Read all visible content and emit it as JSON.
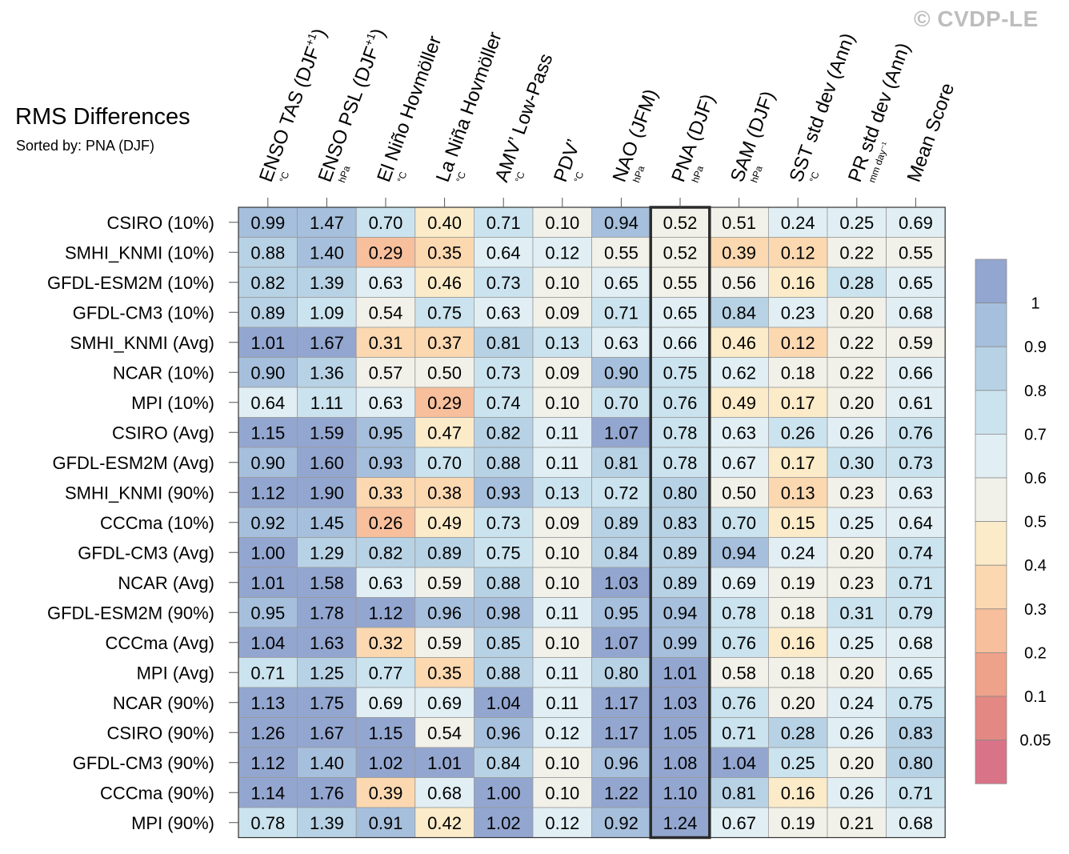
{
  "watermark": "© CVDP-LE",
  "chart_data": {
    "type": "heatmap",
    "title": "RMS Differences",
    "subtitle": "Sorted by: PNA (DJF)",
    "highlighted_column": "PNA (DJF)",
    "columns": [
      {
        "name": "ENSO TAS (DJF",
        "sup": "+1",
        "suffix": ")",
        "unit": "°C"
      },
      {
        "name": "ENSO PSL (DJF",
        "sup": "+1",
        "suffix": ")",
        "unit": "hPa"
      },
      {
        "name": "El Niño Hovmöller",
        "sup": "",
        "suffix": "",
        "unit": "°C"
      },
      {
        "name": "La Niña Hovmöller",
        "sup": "",
        "suffix": "",
        "unit": "°C"
      },
      {
        "name": "AMV’ Low-Pass",
        "sup": "",
        "suffix": "",
        "unit": "°C"
      },
      {
        "name": "PDV’",
        "sup": "",
        "suffix": "",
        "unit": "°C"
      },
      {
        "name": "NAO (JFM)",
        "sup": "",
        "suffix": "",
        "unit": "hPa"
      },
      {
        "name": "PNA (DJF)",
        "sup": "",
        "suffix": "",
        "unit": "hPa"
      },
      {
        "name": "SAM (DJF)",
        "sup": "",
        "suffix": "",
        "unit": "hPa"
      },
      {
        "name": "SST std dev (Ann)",
        "sup": "",
        "suffix": "",
        "unit": "°C"
      },
      {
        "name": "PR std dev (Ann)",
        "sup": "",
        "suffix": "",
        "unit": "mm day⁻¹"
      },
      {
        "name": "Mean Score",
        "sup": "",
        "suffix": "",
        "unit": ""
      }
    ],
    "rows": [
      {
        "label": "CSIRO (10%)",
        "values": [
          "0.99",
          "1.47",
          "0.70",
          "0.40",
          "0.71",
          "0.10",
          "0.94",
          "0.52",
          "0.51",
          "0.24",
          "0.25",
          "0.69"
        ]
      },
      {
        "label": "SMHI_KNMI (10%)",
        "values": [
          "0.88",
          "1.40",
          "0.29",
          "0.35",
          "0.64",
          "0.12",
          "0.55",
          "0.52",
          "0.39",
          "0.12",
          "0.22",
          "0.55"
        ]
      },
      {
        "label": "GFDL-ESM2M (10%)",
        "values": [
          "0.82",
          "1.39",
          "0.63",
          "0.46",
          "0.73",
          "0.10",
          "0.65",
          "0.55",
          "0.56",
          "0.16",
          "0.28",
          "0.65"
        ]
      },
      {
        "label": "GFDL-CM3 (10%)",
        "values": [
          "0.89",
          "1.09",
          "0.54",
          "0.75",
          "0.63",
          "0.09",
          "0.71",
          "0.65",
          "0.84",
          "0.23",
          "0.20",
          "0.68"
        ]
      },
      {
        "label": "SMHI_KNMI (Avg)",
        "values": [
          "1.01",
          "1.67",
          "0.31",
          "0.37",
          "0.81",
          "0.13",
          "0.63",
          "0.66",
          "0.46",
          "0.12",
          "0.22",
          "0.59"
        ]
      },
      {
        "label": "NCAR (10%)",
        "values": [
          "0.90",
          "1.36",
          "0.57",
          "0.50",
          "0.73",
          "0.09",
          "0.90",
          "0.75",
          "0.62",
          "0.18",
          "0.22",
          "0.66"
        ]
      },
      {
        "label": "MPI (10%)",
        "values": [
          "0.64",
          "1.11",
          "0.63",
          "0.29",
          "0.74",
          "0.10",
          "0.70",
          "0.76",
          "0.49",
          "0.17",
          "0.20",
          "0.61"
        ]
      },
      {
        "label": "CSIRO (Avg)",
        "values": [
          "1.15",
          "1.59",
          "0.95",
          "0.47",
          "0.82",
          "0.11",
          "1.07",
          "0.78",
          "0.63",
          "0.26",
          "0.26",
          "0.76"
        ]
      },
      {
        "label": "GFDL-ESM2M (Avg)",
        "values": [
          "0.90",
          "1.60",
          "0.93",
          "0.70",
          "0.88",
          "0.11",
          "0.81",
          "0.78",
          "0.67",
          "0.17",
          "0.30",
          "0.73"
        ]
      },
      {
        "label": "SMHI_KNMI (90%)",
        "values": [
          "1.12",
          "1.90",
          "0.33",
          "0.38",
          "0.93",
          "0.13",
          "0.72",
          "0.80",
          "0.50",
          "0.13",
          "0.23",
          "0.63"
        ]
      },
      {
        "label": "CCCma (10%)",
        "values": [
          "0.92",
          "1.45",
          "0.26",
          "0.49",
          "0.73",
          "0.09",
          "0.89",
          "0.83",
          "0.70",
          "0.15",
          "0.25",
          "0.64"
        ]
      },
      {
        "label": "GFDL-CM3 (Avg)",
        "values": [
          "1.00",
          "1.29",
          "0.82",
          "0.89",
          "0.75",
          "0.10",
          "0.84",
          "0.89",
          "0.94",
          "0.24",
          "0.20",
          "0.74"
        ]
      },
      {
        "label": "NCAR (Avg)",
        "values": [
          "1.01",
          "1.58",
          "0.63",
          "0.59",
          "0.88",
          "0.10",
          "1.03",
          "0.89",
          "0.69",
          "0.19",
          "0.23",
          "0.71"
        ]
      },
      {
        "label": "GFDL-ESM2M (90%)",
        "values": [
          "0.95",
          "1.78",
          "1.12",
          "0.96",
          "0.98",
          "0.11",
          "0.95",
          "0.94",
          "0.78",
          "0.18",
          "0.31",
          "0.79"
        ]
      },
      {
        "label": "CCCma (Avg)",
        "values": [
          "1.04",
          "1.63",
          "0.32",
          "0.59",
          "0.85",
          "0.10",
          "1.07",
          "0.99",
          "0.76",
          "0.16",
          "0.25",
          "0.68"
        ]
      },
      {
        "label": "MPI (Avg)",
        "values": [
          "0.71",
          "1.25",
          "0.77",
          "0.35",
          "0.88",
          "0.11",
          "0.80",
          "1.01",
          "0.58",
          "0.18",
          "0.20",
          "0.65"
        ]
      },
      {
        "label": "NCAR (90%)",
        "values": [
          "1.13",
          "1.75",
          "0.69",
          "0.69",
          "1.04",
          "0.11",
          "1.17",
          "1.03",
          "0.76",
          "0.20",
          "0.24",
          "0.75"
        ]
      },
      {
        "label": "CSIRO (90%)",
        "values": [
          "1.26",
          "1.67",
          "1.15",
          "0.54",
          "0.96",
          "0.12",
          "1.17",
          "1.05",
          "0.71",
          "0.28",
          "0.26",
          "0.83"
        ]
      },
      {
        "label": "GFDL-CM3 (90%)",
        "values": [
          "1.12",
          "1.40",
          "1.02",
          "1.01",
          "0.84",
          "0.10",
          "0.96",
          "1.08",
          "1.04",
          "0.25",
          "0.20",
          "0.80"
        ]
      },
      {
        "label": "CCCma (90%)",
        "values": [
          "1.14",
          "1.76",
          "0.39",
          "0.68",
          "1.00",
          "0.10",
          "1.22",
          "1.10",
          "0.81",
          "0.16",
          "0.26",
          "0.71"
        ]
      },
      {
        "label": "MPI (90%)",
        "values": [
          "0.78",
          "1.39",
          "0.91",
          "0.42",
          "1.02",
          "0.12",
          "0.92",
          "1.24",
          "0.67",
          "0.19",
          "0.21",
          "0.68"
        ]
      }
    ],
    "colorbar": {
      "levels": [
        "1",
        "0.9",
        "0.8",
        "0.7",
        "0.6",
        "0.5",
        "0.4",
        "0.3",
        "0.2",
        "0.1",
        "0.05"
      ],
      "colors": [
        "#93a6d0",
        "#a6bfdc",
        "#b8d2e5",
        "#cbe3ee",
        "#e1eff4",
        "#f2f1e9",
        "#fbebc9",
        "#fbd8b0",
        "#f7bf9c",
        "#eea28a",
        "#e38882",
        "#d97488"
      ]
    }
  }
}
